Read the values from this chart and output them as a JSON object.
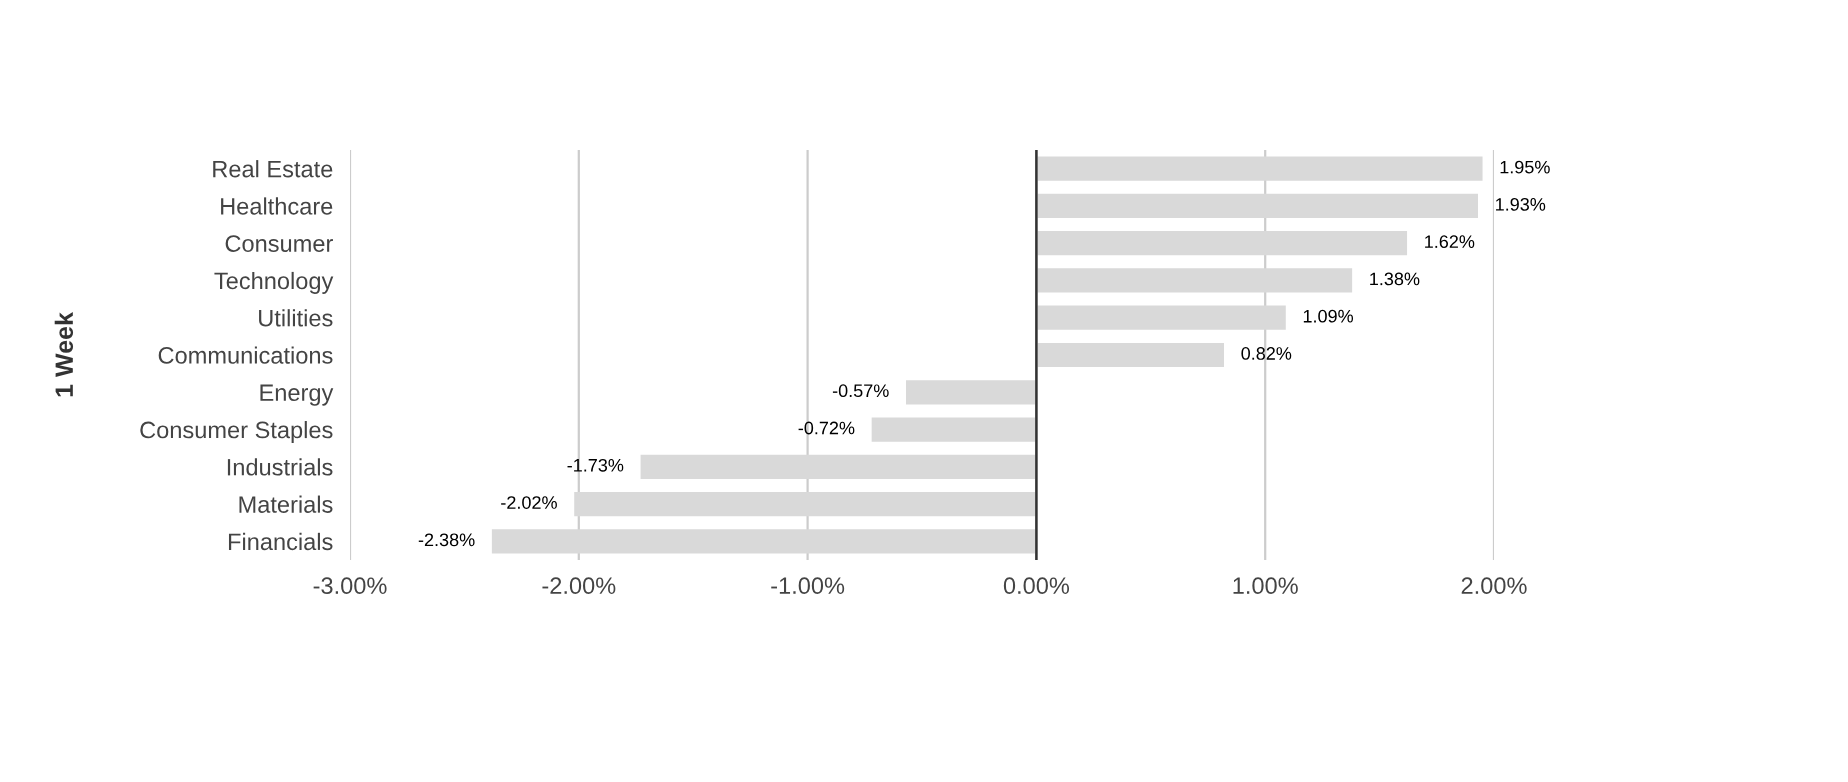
{
  "chart_data": {
    "type": "bar",
    "orientation": "horizontal",
    "ylabel": "1 Week",
    "categories": [
      "Real Estate",
      "Healthcare",
      "Consumer",
      "Technology",
      "Utilities",
      "Communications",
      "Energy",
      "Consumer Staples",
      "Industrials",
      "Materials",
      "Financials"
    ],
    "values": [
      1.95,
      1.93,
      1.62,
      1.38,
      1.09,
      0.82,
      -0.57,
      -0.72,
      -1.73,
      -2.02,
      -2.38
    ],
    "value_labels": [
      "1.95%",
      "1.93%",
      "1.62%",
      "1.38%",
      "1.09%",
      "0.82%",
      "-0.57%",
      "-0.72%",
      "-1.73%",
      "-2.02%",
      "-2.38%"
    ],
    "color": "#d9d9d9",
    "xlim": [
      -3,
      2
    ],
    "xticks": [
      {
        "value": -3,
        "label": "-3.00%"
      },
      {
        "value": -2,
        "label": "-2.00%"
      },
      {
        "value": -1,
        "label": "-1.00%"
      },
      {
        "value": 0,
        "label": "0.00%"
      },
      {
        "value": 1,
        "label": "1.00%"
      },
      {
        "value": 2,
        "label": "2.00%"
      }
    ],
    "grid": "x",
    "legend": false
  }
}
